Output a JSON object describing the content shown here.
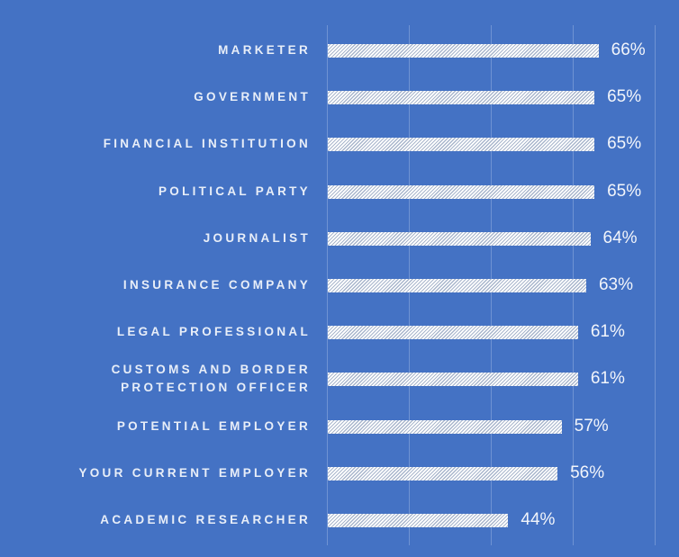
{
  "chart_data": {
    "type": "bar",
    "orientation": "horizontal",
    "title": "",
    "xlabel": "",
    "ylabel": "",
    "xlim": [
      0,
      80
    ],
    "grid": true,
    "gridlines_at": [
      0,
      20,
      40,
      60,
      80
    ],
    "value_suffix": "%",
    "categories": [
      "MARKETER",
      "GOVERNMENT",
      "FINANCIAL INSTITUTION",
      "POLITICAL PARTY",
      "JOURNALIST",
      "INSURANCE COMPANY",
      "LEGAL PROFESSIONAL",
      "CUSTOMS AND BORDER\nPROTECTION OFFICER",
      "POTENTIAL EMPLOYER",
      "YOUR CURRENT EMPLOYER",
      "ACADEMIC RESEARCHER"
    ],
    "values": [
      66,
      65,
      65,
      65,
      64,
      63,
      61,
      61,
      57,
      56,
      44
    ],
    "value_labels": [
      "66%",
      "65%",
      "65%",
      "65%",
      "64%",
      "63%",
      "61%",
      "61%",
      "57%",
      "56%",
      "44%"
    ]
  },
  "colors": {
    "background": "#4472C4",
    "bar_fill": "#ffffff",
    "bar_hatch": "#a9b6cc",
    "gridline": "#6f93d3",
    "text": "#e8eef8"
  }
}
